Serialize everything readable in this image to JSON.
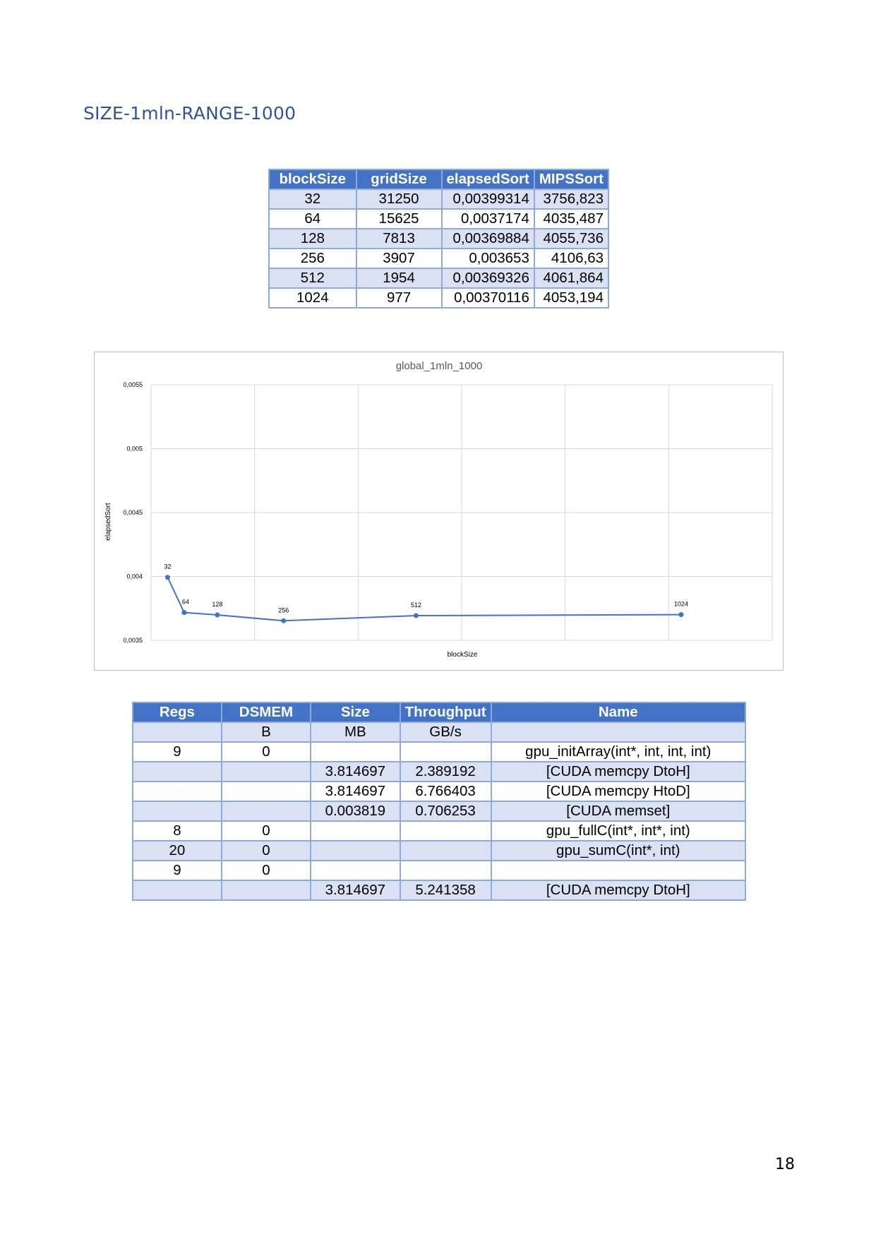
{
  "heading": "SIZE-1mln-RANGE-1000",
  "table1": {
    "headers": [
      "blockSize",
      "gridSize",
      "elapsedSort",
      "MIPSSort"
    ],
    "rows": [
      [
        "32",
        "31250",
        "0,00399314",
        "3756,823"
      ],
      [
        "64",
        "15625",
        "0,0037174",
        "4035,487"
      ],
      [
        "128",
        "7813",
        "0,00369884",
        "4055,736"
      ],
      [
        "256",
        "3907",
        "0,003653",
        "4106,63"
      ],
      [
        "512",
        "1954",
        "0,00369326",
        "4061,864"
      ],
      [
        "1024",
        "977",
        "0,00370116",
        "4053,194"
      ]
    ]
  },
  "chart_data": {
    "type": "line",
    "title": "global_1mln_1000",
    "xlabel": "blockSize",
    "ylabel": "elapsedSort",
    "x": [
      32,
      64,
      128,
      256,
      512,
      1024
    ],
    "point_labels": [
      "32",
      "64",
      "128",
      "256",
      "512",
      "1024"
    ],
    "values": [
      0.00399314,
      0.0037174,
      0.00369884,
      0.003653,
      0.00369326,
      0.00370116
    ],
    "ylim": [
      0.0035,
      0.0055
    ],
    "yticks": [
      0.0035,
      0.004,
      0.0045,
      0.005,
      0.0055
    ],
    "ytick_labels": [
      "0,0035",
      "0,004",
      "0,0045",
      "0,005",
      "0,0055"
    ],
    "xlim": [
      0,
      1200
    ],
    "grid": true,
    "colors": {
      "line": "#4472c4",
      "grid": "#d9d9d9",
      "text": "#595959"
    }
  },
  "table2": {
    "headers": [
      "Regs",
      "DSMEM",
      "Size",
      "Throughput",
      "Name"
    ],
    "rows": [
      [
        "",
        "B",
        "MB",
        "GB/s",
        ""
      ],
      [
        "9",
        "0",
        "",
        "",
        "gpu_initArray(int*, int, int, int)"
      ],
      [
        "",
        "",
        "3.814697",
        "2.389192",
        "[CUDA memcpy DtoH]"
      ],
      [
        "",
        "",
        "3.814697",
        "6.766403",
        "[CUDA memcpy HtoD]"
      ],
      [
        "",
        "",
        "0.003819",
        "0.706253",
        "[CUDA memset]"
      ],
      [
        "8",
        "0",
        "",
        "",
        "gpu_fullC(int*, int*, int)"
      ],
      [
        "20",
        "0",
        "",
        "",
        "gpu_sumC(int*, int)"
      ],
      [
        "9",
        "0",
        "",
        "",
        ""
      ],
      [
        "",
        "",
        "3.814697",
        "5.241358",
        "[CUDA memcpy DtoH]"
      ]
    ]
  },
  "page_number": "18"
}
